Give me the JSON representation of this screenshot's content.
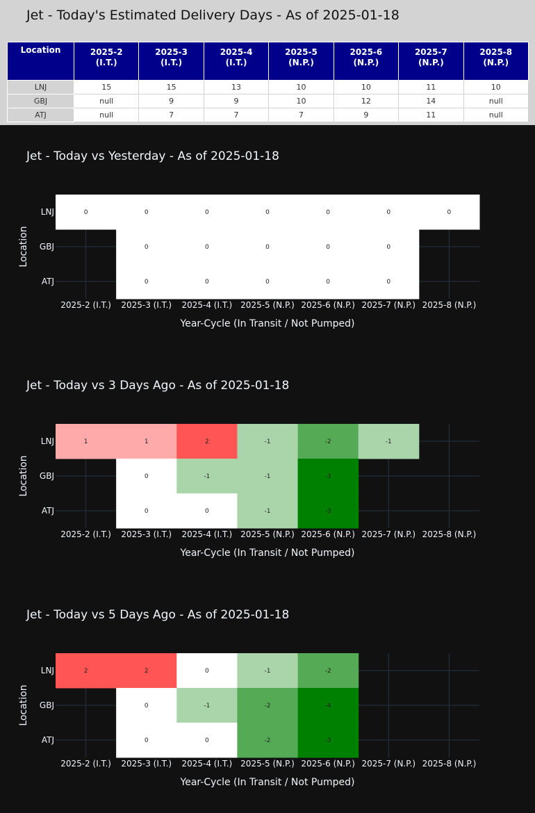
{
  "table": {
    "title": "Jet - Today's Estimated Delivery Days - As of 2025-01-18",
    "header": [
      "Location",
      "2025-2 (I.T.)",
      "2025-3 (I.T.)",
      "2025-4 (I.T.)",
      "2025-5 (N.P.)",
      "2025-6 (N.P.)",
      "2025-7 (N.P.)",
      "2025-8 (N.P.)"
    ],
    "rows": [
      [
        "LNJ",
        "15",
        "15",
        "13",
        "10",
        "10",
        "11",
        "10"
      ],
      [
        "GBJ",
        "null",
        "9",
        "9",
        "10",
        "12",
        "14",
        "null"
      ],
      [
        "ATJ",
        "null",
        "7",
        "7",
        "7",
        "9",
        "11",
        "null"
      ]
    ],
    "header_color": "#00008b"
  },
  "chart_data": [
    {
      "type": "heatmap",
      "title": "Jet - Today vs Yesterday - As of 2025-01-18",
      "xlabel": "Year-Cycle (In Transit / Not Pumped)",
      "ylabel": "Location",
      "categories": [
        "2025-2 (I.T.)",
        "2025-3 (I.T.)",
        "2025-4 (I.T.)",
        "2025-5 (N.P.)",
        "2025-6 (N.P.)",
        "2025-7 (N.P.)",
        "2025-8 (N.P.)"
      ],
      "rows": [
        "LNJ",
        "GBJ",
        "ATJ"
      ],
      "values": [
        [
          0,
          0,
          0,
          0,
          0,
          0,
          0
        ],
        [
          null,
          0,
          0,
          0,
          0,
          0,
          null
        ],
        [
          null,
          0,
          0,
          0,
          0,
          0,
          null
        ]
      ]
    },
    {
      "type": "heatmap",
      "title": "Jet - Today vs 3 Days Ago - As of 2025-01-18",
      "xlabel": "Year-Cycle (In Transit / Not Pumped)",
      "ylabel": "Location",
      "categories": [
        "2025-2 (I.T.)",
        "2025-3 (I.T.)",
        "2025-4 (I.T.)",
        "2025-5 (N.P.)",
        "2025-6 (N.P.)",
        "2025-7 (N.P.)",
        "2025-8 (N.P.)"
      ],
      "rows": [
        "LNJ",
        "GBJ",
        "ATJ"
      ],
      "values": [
        [
          1,
          1,
          2,
          -1,
          -2,
          -1,
          null
        ],
        [
          null,
          0,
          -1,
          -1,
          -3,
          null,
          null
        ],
        [
          null,
          0,
          0,
          -1,
          -3,
          null,
          null
        ]
      ]
    },
    {
      "type": "heatmap",
      "title": "Jet - Today vs 5 Days Ago - As of 2025-01-18",
      "xlabel": "Year-Cycle (In Transit / Not Pumped)",
      "ylabel": "Location",
      "categories": [
        "2025-2 (I.T.)",
        "2025-3 (I.T.)",
        "2025-4 (I.T.)",
        "2025-5 (N.P.)",
        "2025-6 (N.P.)",
        "2025-7 (N.P.)",
        "2025-8 (N.P.)"
      ],
      "rows": [
        "LNJ",
        "GBJ",
        "ATJ"
      ],
      "values": [
        [
          2,
          2,
          0,
          -1,
          -2,
          null,
          null
        ],
        [
          null,
          0,
          -1,
          -2,
          -4,
          null,
          null
        ],
        [
          null,
          0,
          0,
          -2,
          -3,
          null,
          null
        ]
      ]
    }
  ],
  "colors": {
    "background": "#111111",
    "positive": "#ff0000",
    "negative": "#008000",
    "zero": "#ffffff",
    "grid": "#283442"
  }
}
